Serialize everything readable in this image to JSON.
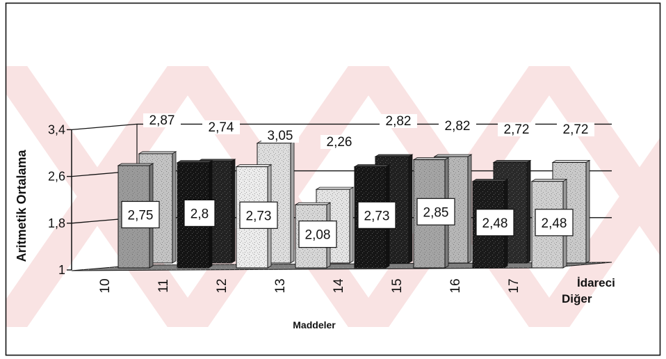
{
  "chart_data": {
    "type": "bar",
    "view": "3-D clustered columns",
    "categories": [
      "10",
      "11",
      "12",
      "13",
      "14",
      "15",
      "16",
      "17"
    ],
    "series": [
      {
        "name": "Diğer",
        "values": [
          2.75,
          2.8,
          2.73,
          2.08,
          2.73,
          2.85,
          2.48,
          2.48
        ]
      },
      {
        "name": "İdareci",
        "values": [
          2.87,
          2.74,
          3.05,
          2.26,
          2.82,
          2.82,
          2.72,
          2.72
        ]
      }
    ],
    "xlabel": "Maddeler",
    "ylabel": "Aritmetik Ortalama",
    "ylim": [
      1,
      3.4
    ],
    "yticks": [
      1,
      1.8,
      2.6,
      3.4
    ],
    "grid": true,
    "data_labels": true
  },
  "colors": {
    "front_bars": [
      "#9a9a9a",
      "#141414",
      "#ececec",
      "#d6d6d6",
      "#161616",
      "#a4a4a4",
      "#1a1a1a",
      "#cfcfcf"
    ],
    "back_bars": [
      "#c3c3c3",
      "#222222",
      "#dddddd",
      "#e4e4e4",
      "#202020",
      "#b6b6b6",
      "#2a2a2a",
      "#c9c9c9"
    ],
    "label_box": "#ffffff",
    "watermark": "#f9e0e0",
    "frame": "#111111",
    "floor": "#7e7e7e"
  }
}
